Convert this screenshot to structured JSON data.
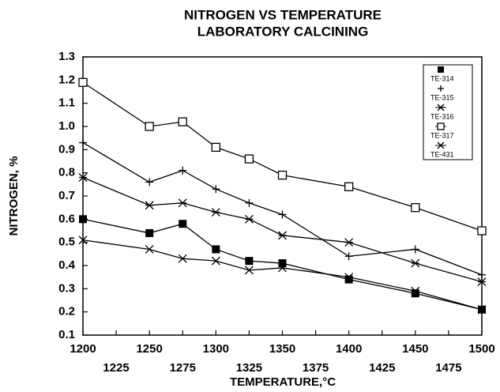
{
  "chart_data": {
    "type": "line",
    "title": "NITROGEN VS TEMPERATURE",
    "subtitle": "LABORATORY CALCINING",
    "x_label": "TEMPERATURE,°C",
    "y_label": "NITROGEN, %",
    "x": [
      1200,
      1250,
      1275,
      1300,
      1325,
      1350,
      1400,
      1450,
      1500
    ],
    "series": [
      {
        "name": "TE-314",
        "color": "#000000",
        "marker": "filled-square",
        "values": [
          0.6,
          0.54,
          0.58,
          0.47,
          0.42,
          0.41,
          0.34,
          0.28,
          0.21
        ]
      },
      {
        "name": "TE-315",
        "color": "#000000",
        "marker": "plus",
        "values": [
          0.93,
          0.76,
          0.81,
          0.73,
          0.67,
          0.62,
          0.44,
          0.47,
          0.36
        ]
      },
      {
        "name": "TE-316",
        "color": "#000000",
        "marker": "asterisk",
        "values": [
          0.78,
          0.66,
          0.67,
          0.63,
          0.6,
          0.53,
          0.5,
          0.41,
          0.33
        ]
      },
      {
        "name": "TE-317",
        "color": "#000000",
        "marker": "open-square",
        "values": [
          1.19,
          1.0,
          1.02,
          0.91,
          0.86,
          0.79,
          0.74,
          0.65,
          0.55
        ]
      },
      {
        "name": "TE-431",
        "color": "#000000",
        "marker": "cross",
        "values": [
          0.51,
          0.47,
          0.43,
          0.42,
          0.38,
          0.39,
          0.35,
          0.29,
          0.21
        ]
      }
    ],
    "xlim": [
      1200,
      1500
    ],
    "xticks": [
      1200,
      1225,
      1250,
      1275,
      1300,
      1325,
      1350,
      1375,
      1400,
      1425,
      1450,
      1475,
      1500
    ],
    "ylim": [
      0.1,
      1.3
    ],
    "yticks": [
      0.1,
      0.2,
      0.3,
      0.4,
      0.5,
      0.6,
      0.7,
      0.8,
      0.9,
      {
        "value": 1.0,
        "label": "1.0"
      },
      1.1,
      1.2,
      1.3
    ],
    "legend": "upper right",
    "grid": false
  }
}
